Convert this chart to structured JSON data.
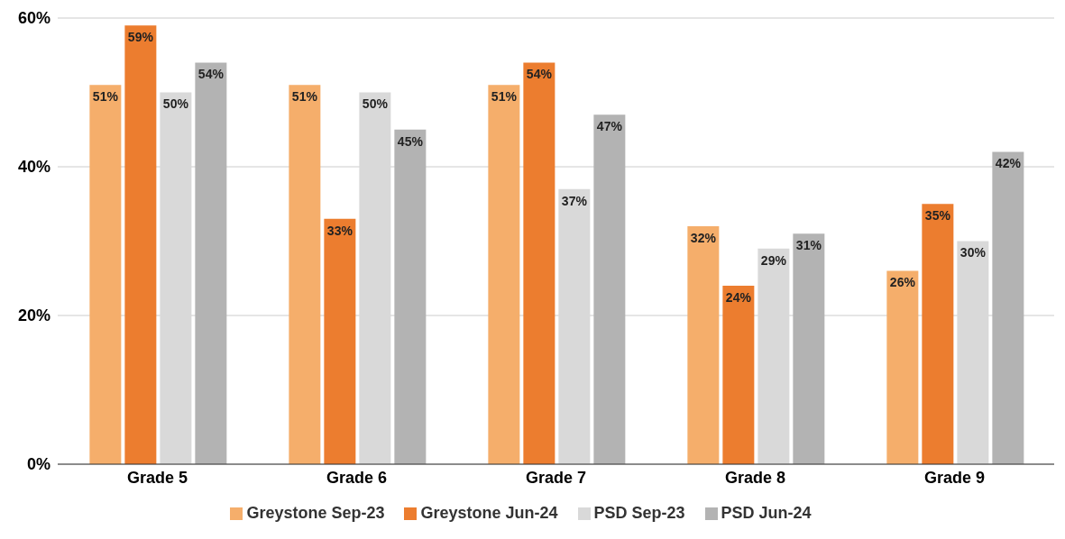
{
  "chart_data": {
    "type": "bar",
    "categories": [
      "Grade 5",
      "Grade 6",
      "Grade 7",
      "Grade 8",
      "Grade 9"
    ],
    "series": [
      {
        "name": "Greystone Sep-23",
        "color": "#f5ae6b",
        "values": [
          51,
          51,
          51,
          32,
          26
        ],
        "value_labels": [
          "51%",
          "51%",
          "51%",
          "32%",
          "26%"
        ]
      },
      {
        "name": "Greystone Jun-24",
        "color": "#ec7d2f",
        "values": [
          59,
          33,
          54,
          24,
          35
        ],
        "value_labels": [
          "59%",
          "33%",
          "54%",
          "24%",
          "35%"
        ]
      },
      {
        "name": "PSD Sep-23",
        "color": "#d9d9d9",
        "values": [
          50,
          50,
          37,
          29,
          30
        ],
        "value_labels": [
          "50%",
          "50%",
          "37%",
          "29%",
          "30%"
        ]
      },
      {
        "name": "PSD Jun-24",
        "color": "#b3b3b3",
        "values": [
          54,
          45,
          47,
          31,
          42
        ],
        "value_labels": [
          "54%",
          "45%",
          "47%",
          "31%",
          "42%"
        ]
      }
    ],
    "ylim": [
      0,
      60
    ],
    "yticks": [
      {
        "value": 0,
        "label": "0%"
      },
      {
        "value": 20,
        "label": "20%"
      },
      {
        "value": 40,
        "label": "40%"
      },
      {
        "value": 60,
        "label": "60%"
      }
    ],
    "grid": "y",
    "legend": "bottom"
  }
}
